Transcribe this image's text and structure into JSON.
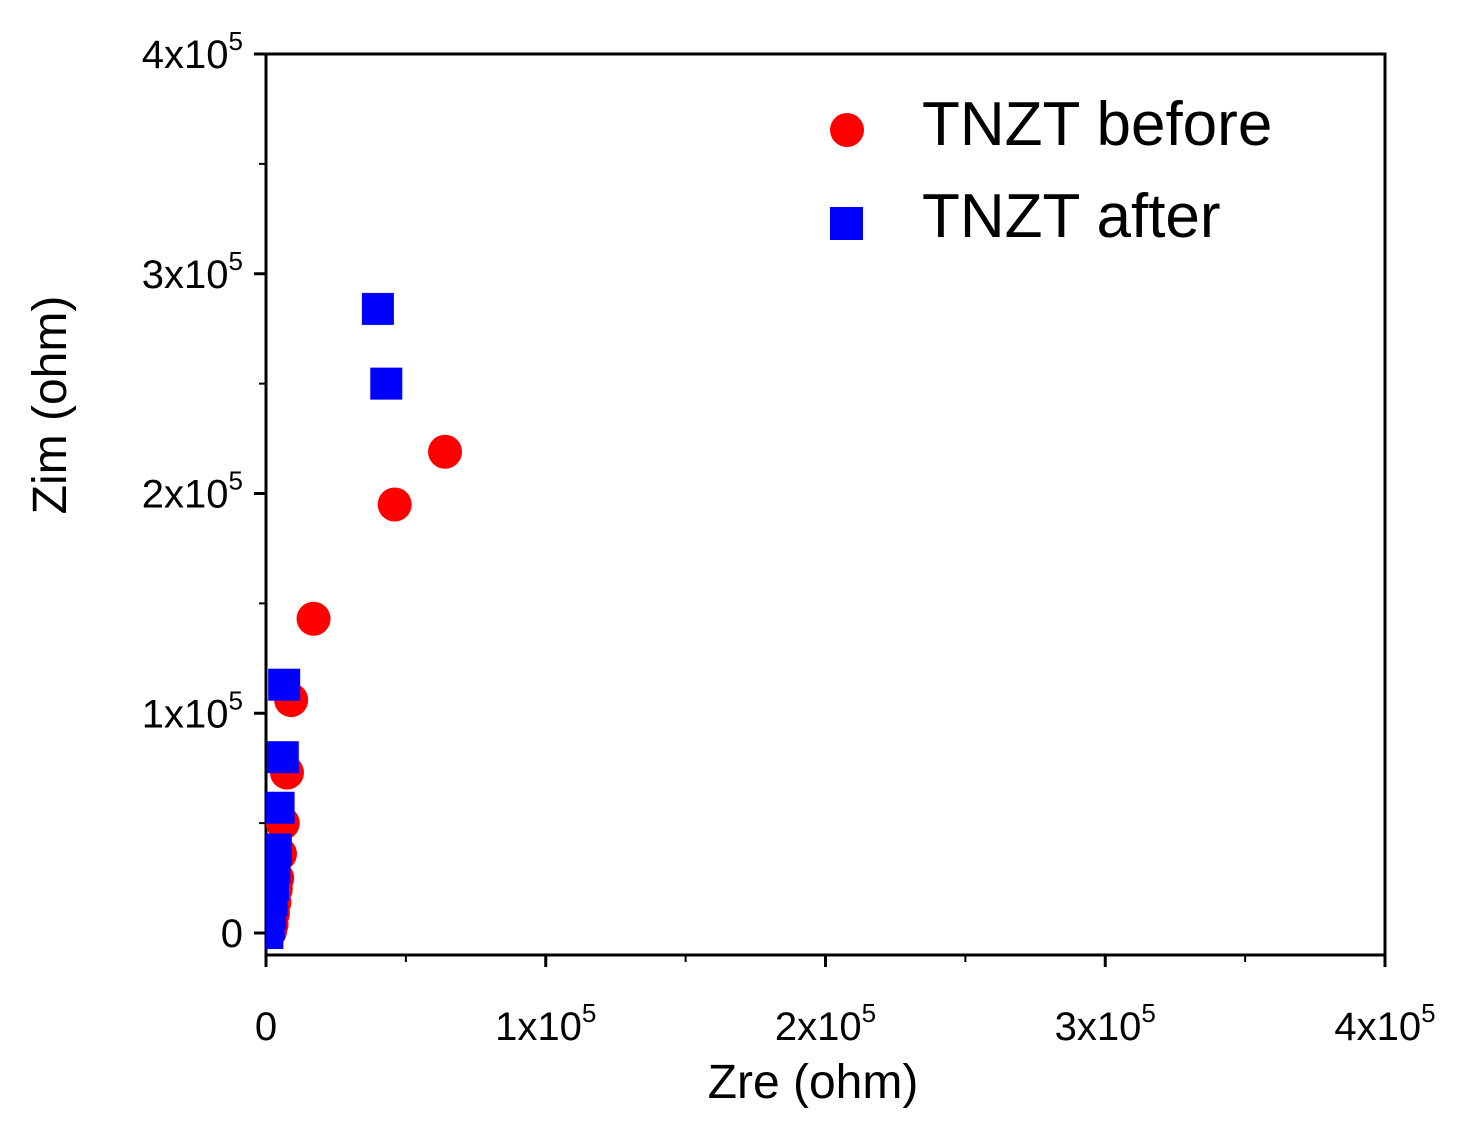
{
  "chart_data": {
    "type": "scatter",
    "xlabel": "Zre (ohm)",
    "ylabel": "Zim (ohm)",
    "xlim": [
      0,
      400000
    ],
    "ylim": [
      -10000,
      400000
    ],
    "x_ticks": [
      {
        "value": 0,
        "mant": "0",
        "exp": ""
      },
      {
        "value": 100000,
        "mant": "1x10",
        "exp": "5"
      },
      {
        "value": 200000,
        "mant": "2x10",
        "exp": "5"
      },
      {
        "value": 300000,
        "mant": "3x10",
        "exp": "5"
      },
      {
        "value": 400000,
        "mant": "4x10",
        "exp": "5"
      }
    ],
    "y_ticks": [
      {
        "value": 0,
        "mant": "0",
        "exp": ""
      },
      {
        "value": 100000,
        "mant": "1x10",
        "exp": "5"
      },
      {
        "value": 200000,
        "mant": "2x10",
        "exp": "5"
      },
      {
        "value": 300000,
        "mant": "3x10",
        "exp": "5"
      },
      {
        "value": 400000,
        "mant": "4x10",
        "exp": "5"
      }
    ],
    "x_minor": [
      50000,
      150000,
      250000,
      350000
    ],
    "y_minor": [
      50000,
      150000,
      250000,
      350000
    ],
    "legend_position": "top-right",
    "series": [
      {
        "name": "TNZT before",
        "marker": "circle",
        "color": "#ff0000",
        "points": [
          {
            "x": 1500,
            "y": 1000
          },
          {
            "x": 2000,
            "y": 4000
          },
          {
            "x": 2500,
            "y": 9000
          },
          {
            "x": 3000,
            "y": 14000
          },
          {
            "x": 3500,
            "y": 20000
          },
          {
            "x": 4000,
            "y": 25000
          },
          {
            "x": 5000,
            "y": 36000
          },
          {
            "x": 6000,
            "y": 50000
          },
          {
            "x": 7500,
            "y": 73000
          },
          {
            "x": 9000,
            "y": 106000
          },
          {
            "x": 17000,
            "y": 143000
          },
          {
            "x": 46000,
            "y": 195000
          },
          {
            "x": 64000,
            "y": 219000
          }
        ]
      },
      {
        "name": "TNZT after",
        "marker": "square",
        "color": "#0000ff",
        "points": [
          {
            "x": 500,
            "y": 0
          },
          {
            "x": 1000,
            "y": 4000
          },
          {
            "x": 1500,
            "y": 9000
          },
          {
            "x": 2000,
            "y": 15000
          },
          {
            "x": 2500,
            "y": 22000
          },
          {
            "x": 3000,
            "y": 30000
          },
          {
            "x": 3500,
            "y": 38000
          },
          {
            "x": 4500,
            "y": 57000
          },
          {
            "x": 6000,
            "y": 80000
          },
          {
            "x": 6500,
            "y": 113000
          },
          {
            "x": 40000,
            "y": 284000
          },
          {
            "x": 43000,
            "y": 250000
          }
        ]
      }
    ]
  }
}
